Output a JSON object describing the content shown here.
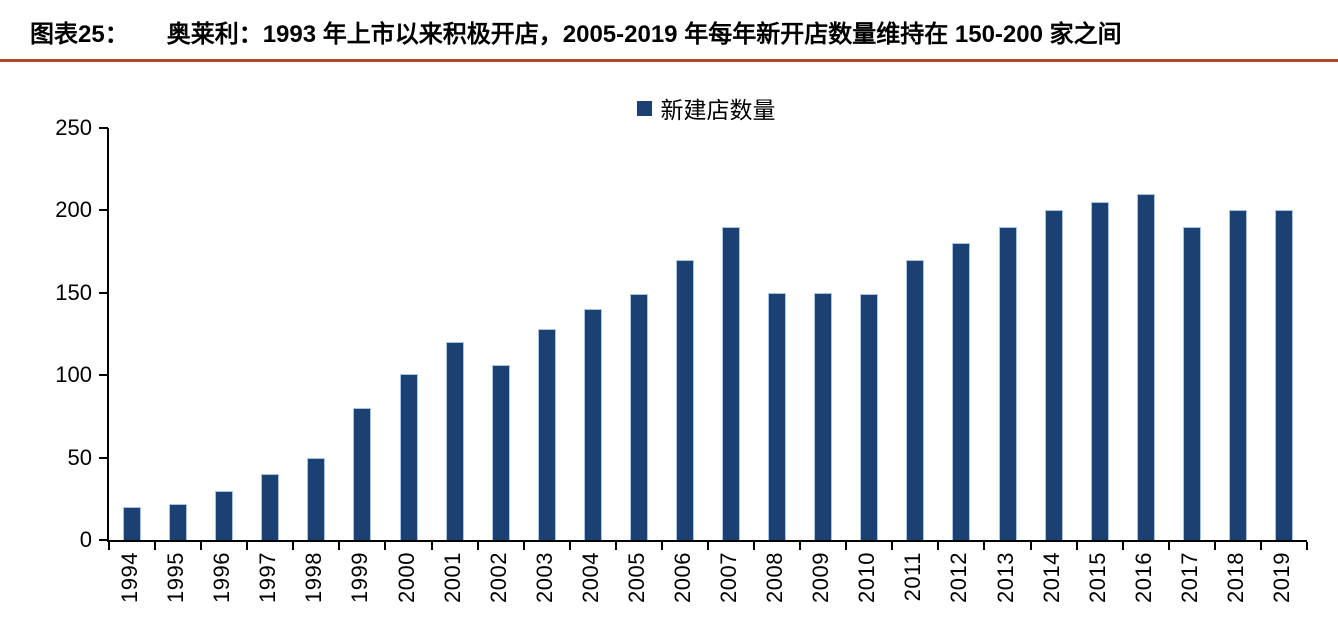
{
  "figure": {
    "label": "图表25：",
    "title": "奥莱利：1993 年上市以来积极开店，2005-2019 年每年新开店数量维持在 150-200 家之间"
  },
  "legend": {
    "label": "新建店数量"
  },
  "colors": {
    "bar": "#1b4173",
    "bar_edge": "#a9c4e4",
    "title_rule": "#b04a2f",
    "axis": "#000000"
  },
  "chart_data": {
    "type": "bar",
    "title": "奥莱利：1993 年上市以来积极开店，2005-2019 年每年新开店数量维持在 150-200 家之间",
    "legend_entries": [
      "新建店数量"
    ],
    "legend_position": "top-center",
    "xlabel": "",
    "ylabel": "",
    "categories": [
      "1994",
      "1995",
      "1996",
      "1997",
      "1998",
      "1999",
      "2000",
      "2001",
      "2002",
      "2003",
      "2004",
      "2005",
      "2006",
      "2007",
      "2008",
      "2009",
      "2010",
      "2011",
      "2012",
      "2013",
      "2014",
      "2015",
      "2016",
      "2017",
      "2018",
      "2019"
    ],
    "values": [
      20,
      22,
      30,
      40,
      50,
      80,
      101,
      120,
      106,
      128,
      140,
      149,
      170,
      190,
      150,
      150,
      149,
      170,
      180,
      190,
      200,
      205,
      210,
      190,
      200,
      200
    ],
    "ylim": [
      0,
      250
    ],
    "yticks": [
      0,
      50,
      100,
      150,
      200,
      250
    ],
    "grid": false,
    "x_tick_marks": "category-boundaries",
    "x_label_rotation": -90
  }
}
